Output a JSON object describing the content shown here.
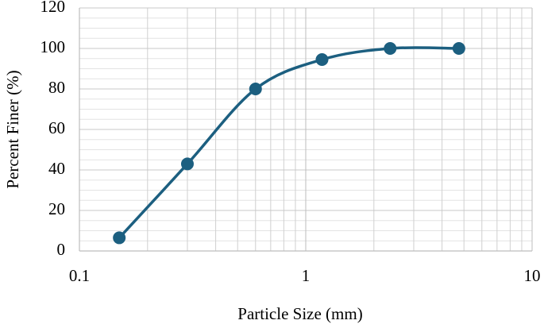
{
  "chart_data": {
    "type": "line",
    "x_label": "Particle Size (mm)",
    "y_label": "Percent Finer (%)",
    "x": [
      0.15,
      0.3,
      0.6,
      1.18,
      2.36,
      4.75
    ],
    "series": [
      {
        "color": "#1c5f80",
        "values": [
          6.5,
          43,
          80,
          94.5,
          100,
          100
        ]
      }
    ],
    "xscale": "log",
    "xlim": [
      0.1,
      10
    ],
    "xticks": [
      0.1,
      1,
      10
    ],
    "ylim": [
      0,
      120
    ],
    "yticks": [
      0,
      20,
      40,
      60,
      80,
      100,
      120
    ],
    "grid": true,
    "smooth": true
  }
}
